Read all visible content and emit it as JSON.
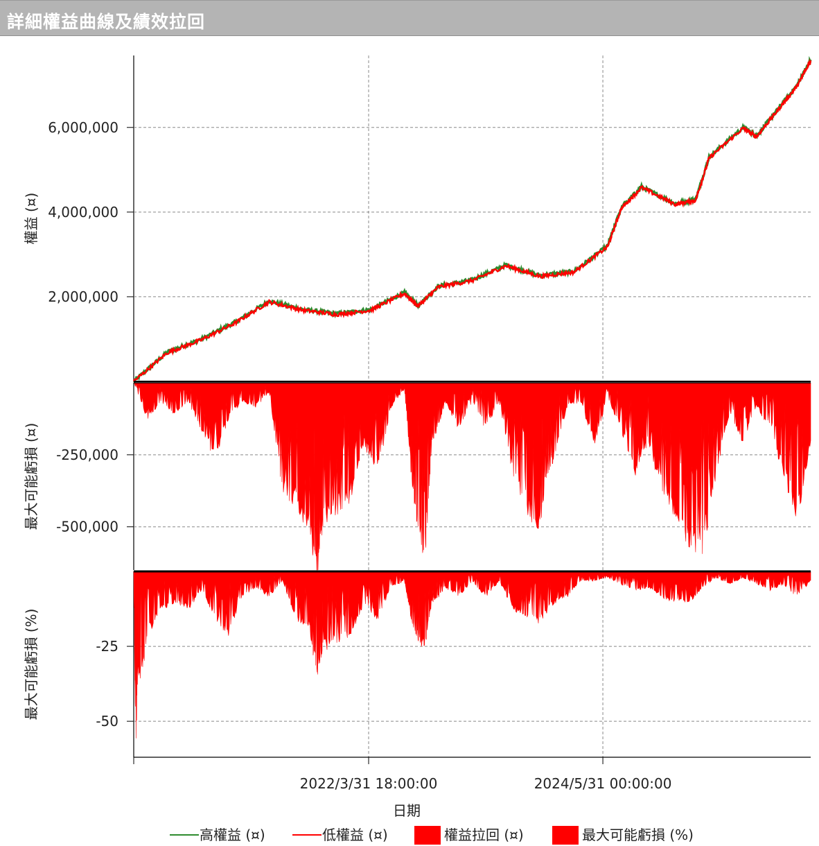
{
  "window": {
    "title": "詳細權益曲線及績效拉回"
  },
  "colors": {
    "high_equity": "#2e8b2e",
    "low_equity": "#ff0000",
    "drawdown_fill": "#ff0000",
    "grid": "#888888"
  },
  "chart_data": [
    {
      "type": "line",
      "ylabel": "權益 (¤)",
      "ylim": [
        0,
        7700000
      ],
      "yticks": [
        2000000,
        4000000,
        6000000
      ],
      "ytick_labels": [
        "2,000,000",
        "4,000,000",
        "6,000,000"
      ],
      "x": [
        0,
        0.05,
        0.1,
        0.15,
        0.2,
        0.25,
        0.3,
        0.35,
        0.4,
        0.42,
        0.45,
        0.5,
        0.55,
        0.6,
        0.65,
        0.7,
        0.72,
        0.75,
        0.8,
        0.83,
        0.85,
        0.9,
        0.92,
        0.95,
        0.98,
        1.0
      ],
      "series": [
        {
          "name": "高權益 (¤)",
          "values": [
            0,
            700000,
            1000000,
            1400000,
            1900000,
            1700000,
            1600000,
            1700000,
            2100000,
            1800000,
            2250000,
            2400000,
            2750000,
            2500000,
            2600000,
            3200000,
            4100000,
            4600000,
            4200000,
            4300000,
            5300000,
            6000000,
            5800000,
            6400000,
            7000000,
            7600000
          ]
        },
        {
          "name": "低權益 (¤)",
          "values": [
            0,
            680000,
            980000,
            1380000,
            1880000,
            1680000,
            1580000,
            1680000,
            2080000,
            1780000,
            2230000,
            2380000,
            2730000,
            2480000,
            2580000,
            3180000,
            4080000,
            4580000,
            4180000,
            4280000,
            5280000,
            5980000,
            5780000,
            6380000,
            6980000,
            7580000
          ]
        }
      ]
    },
    {
      "type": "area",
      "ylabel": "最大可能虧損 (¤)",
      "ylim": [
        -650000,
        0
      ],
      "yticks": [
        -250000,
        -500000
      ],
      "ytick_labels": [
        "-250,000",
        "-500,000"
      ],
      "series": [
        {
          "name": "權益拉回 (¤)",
          "x": [
            0,
            0.02,
            0.04,
            0.06,
            0.08,
            0.1,
            0.12,
            0.14,
            0.16,
            0.18,
            0.2,
            0.22,
            0.24,
            0.26,
            0.27,
            0.28,
            0.3,
            0.32,
            0.34,
            0.36,
            0.38,
            0.4,
            0.41,
            0.42,
            0.43,
            0.44,
            0.45,
            0.46,
            0.48,
            0.5,
            0.52,
            0.54,
            0.56,
            0.58,
            0.6,
            0.61,
            0.62,
            0.64,
            0.66,
            0.68,
            0.7,
            0.72,
            0.74,
            0.76,
            0.78,
            0.8,
            0.82,
            0.84,
            0.86,
            0.88,
            0.9,
            0.92,
            0.94,
            0.96,
            0.98,
            1.0
          ],
          "values": [
            0,
            -120000,
            -60000,
            -100000,
            -60000,
            -150000,
            -250000,
            -120000,
            -60000,
            -80000,
            -30000,
            -350000,
            -400000,
            -500000,
            -650000,
            -450000,
            -420000,
            -380000,
            -200000,
            -300000,
            -80000,
            -20000,
            -300000,
            -500000,
            -600000,
            -200000,
            -150000,
            -60000,
            -150000,
            -60000,
            -150000,
            -60000,
            -300000,
            -420000,
            -480000,
            -300000,
            -250000,
            -80000,
            -60000,
            -200000,
            -50000,
            -150000,
            -300000,
            -200000,
            -350000,
            -440000,
            -520000,
            -560000,
            -300000,
            -100000,
            -200000,
            -80000,
            -150000,
            -300000,
            -450000,
            -200000
          ]
        }
      ]
    },
    {
      "type": "area",
      "ylabel": "最大可能虧損 (%)",
      "ylim": [
        -62,
        0
      ],
      "yticks": [
        -25,
        -50
      ],
      "ytick_labels": [
        "-25",
        "-50"
      ],
      "series": [
        {
          "name": "最大可能虧損 (%)",
          "x": [
            0,
            0.003,
            0.006,
            0.01,
            0.02,
            0.04,
            0.06,
            0.08,
            0.1,
            0.12,
            0.14,
            0.16,
            0.18,
            0.2,
            0.22,
            0.24,
            0.26,
            0.27,
            0.28,
            0.3,
            0.32,
            0.34,
            0.36,
            0.38,
            0.4,
            0.41,
            0.42,
            0.43,
            0.44,
            0.45,
            0.46,
            0.48,
            0.5,
            0.52,
            0.54,
            0.56,
            0.58,
            0.6,
            0.62,
            0.64,
            0.66,
            0.68,
            0.7,
            0.72,
            0.74,
            0.76,
            0.78,
            0.8,
            0.82,
            0.84,
            0.86,
            0.88,
            0.9,
            0.92,
            0.94,
            0.96,
            0.98,
            1.0
          ],
          "values": [
            0,
            -60,
            -30,
            -36,
            -20,
            -12,
            -10,
            -12,
            -6,
            -15,
            -20,
            -8,
            -5,
            -8,
            -3,
            -15,
            -18,
            -33,
            -25,
            -22,
            -20,
            -10,
            -15,
            -5,
            -3,
            -15,
            -22,
            -24,
            -10,
            -8,
            -5,
            -8,
            -3,
            -8,
            -3,
            -12,
            -14,
            -16,
            -10,
            -8,
            -3,
            -3,
            -2,
            -4,
            -6,
            -5,
            -8,
            -10,
            -10,
            -5,
            -2,
            -4,
            -2,
            -4,
            -6,
            -4,
            -8,
            -3
          ]
        }
      ]
    }
  ],
  "xaxis": {
    "label": "日期",
    "tick_labels": [
      "2022/3/31 18:00:00",
      "2024/5/31 00:00:00"
    ]
  },
  "legend": {
    "items": [
      {
        "label": "高權益 (¤)",
        "kind": "line",
        "color": "#2e8b2e"
      },
      {
        "label": "低權益 (¤)",
        "kind": "line",
        "color": "#ff0000"
      },
      {
        "label": "權益拉回 (¤)",
        "kind": "box",
        "color": "#ff0000"
      },
      {
        "label": "最大可能虧損 (%)",
        "kind": "box",
        "color": "#ff0000"
      }
    ]
  }
}
